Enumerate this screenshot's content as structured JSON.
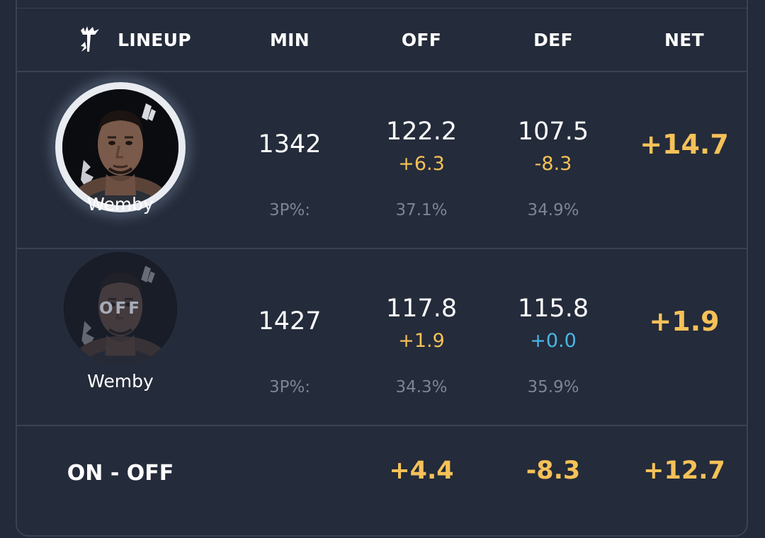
{
  "header": {
    "logo_icon": "spurs-logo-icon",
    "columns": [
      "LINEUP",
      "MIN",
      "OFF",
      "DEF",
      "NET"
    ]
  },
  "rows": [
    {
      "status": "on",
      "player_name": "Wemby",
      "overlay": "",
      "min": "1342",
      "off": "122.2",
      "off_delta": "+6.3",
      "def": "107.5",
      "def_delta": "-8.3",
      "net": "+14.7",
      "three_label": "3P%:",
      "off_3p": "37.1%",
      "def_3p": "34.9%"
    },
    {
      "status": "off",
      "player_name": "Wemby",
      "overlay": "OFF",
      "min": "1427",
      "off": "117.8",
      "off_delta": "+1.9",
      "def": "115.8",
      "def_delta": "+0.0",
      "net": "+1.9",
      "three_label": "3P%:",
      "off_3p": "34.3%",
      "def_3p": "35.9%"
    }
  ],
  "footer": {
    "label": "ON - OFF",
    "off": "+4.4",
    "def": "-8.3",
    "net": "+12.7"
  },
  "colors": {
    "background": "#242b3a",
    "accent_yellow": "#f5c158",
    "accent_blue": "#4ab6e8",
    "muted": "#7d8594"
  }
}
